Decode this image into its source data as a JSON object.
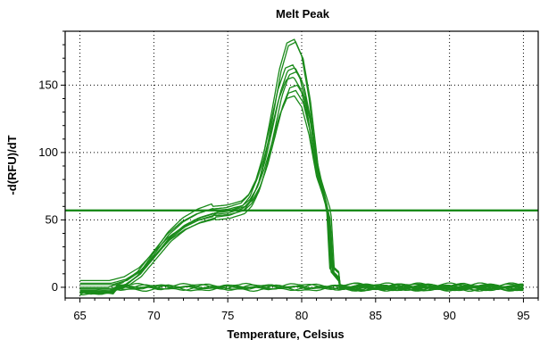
{
  "chart_data": {
    "type": "line",
    "title": "Melt Peak",
    "xlabel": "Temperature, Celsius",
    "ylabel": "-d(RFU)/dT",
    "xlim": [
      64,
      96
    ],
    "ylim": [
      -8,
      190
    ],
    "x_ticks": [
      65,
      70,
      75,
      80,
      85,
      90,
      95
    ],
    "y_ticks": [
      0,
      50,
      100,
      150
    ],
    "grid": true,
    "line_color": "#1a8a1a",
    "threshold": 57,
    "curve_shape": {
      "x": [
        65,
        66,
        67,
        68,
        69,
        70,
        71,
        72,
        73,
        74,
        75,
        76,
        76.5,
        77,
        77.5,
        78,
        78.5,
        79,
        79.5,
        80,
        80.5,
        81,
        82,
        83,
        84,
        85,
        87,
        90,
        93,
        95
      ],
      "unit": [
        0,
        0,
        0,
        0.03,
        0.1,
        0.22,
        0.34,
        0.42,
        0.47,
        0.5,
        0.55,
        0.7,
        0.95,
        1.45,
        2.25,
        3.3,
        4.4,
        5.1,
        5.2,
        4.75,
        3.6,
        1.9,
        0.12,
        0.02,
        0.01,
        0,
        0,
        0,
        0,
        0
      ]
    },
    "series": [
      {
        "peak": 184,
        "plateau": 55,
        "base": 5,
        "shift": 0
      },
      {
        "peak": 182,
        "plateau": 52,
        "base": 3,
        "shift": 0.1
      },
      {
        "peak": 165,
        "plateau": 58,
        "base": 0,
        "shift": -0.1
      },
      {
        "peak": 163,
        "plateau": 54,
        "base": -2,
        "shift": 0.05
      },
      {
        "peak": 160,
        "plateau": 50,
        "base": -3,
        "shift": 0.15
      },
      {
        "peak": 156,
        "plateau": 60,
        "base": -4,
        "shift": -0.05
      },
      {
        "peak": 150,
        "plateau": 56,
        "base": 2,
        "shift": 0.2
      },
      {
        "peak": 146,
        "plateau": 53,
        "base": -1,
        "shift": 0.1
      },
      {
        "peak": 142,
        "plateau": 57,
        "base": -3,
        "shift": 0
      }
    ],
    "flat_series_count": 6
  }
}
